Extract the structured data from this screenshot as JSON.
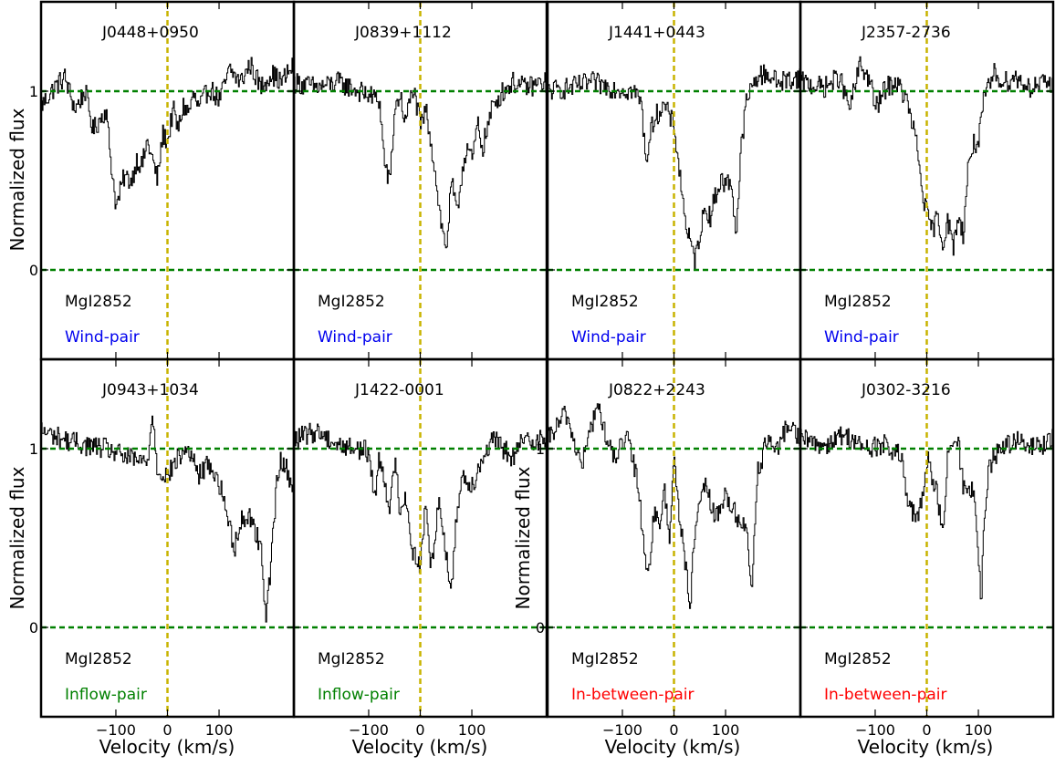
{
  "figure": {
    "ylabel": "Normalized flux",
    "xlabel": "Velocity (km/s)",
    "colors": {
      "spectrum": "#000000",
      "continuum": "#008000",
      "zero_velocity": "#c8b400",
      "wind": "#0000ee",
      "inflow": "#008000",
      "in_between": "#ff0000"
    }
  },
  "chart_data": [
    {
      "type": "line",
      "panel": 1,
      "title": "J0448+0950",
      "line_label": "MgI2852",
      "pair_label": "Wind-pair",
      "pair_color": "#0000ee",
      "xlim": [
        -245,
        245
      ],
      "ylim": [
        -0.5,
        1.5
      ],
      "xticks": [
        -100,
        0,
        100
      ],
      "xtick_labels": [
        "−100",
        "0",
        "100"
      ],
      "yticks": [
        0,
        1
      ],
      "ytick_labels": [
        "0",
        "1"
      ],
      "hlines": [
        0,
        1
      ],
      "vline": 0,
      "x": [
        -245,
        -220,
        -200,
        -180,
        -160,
        -145,
        -120,
        -110,
        -100,
        -85,
        -70,
        -60,
        -50,
        -40,
        -30,
        -20,
        -10,
        0,
        10,
        20,
        30,
        40,
        50,
        60,
        80,
        100,
        120,
        140,
        160,
        180,
        200,
        220,
        245
      ],
      "y": [
        0.92,
        1.02,
        1.08,
        0.9,
        1.0,
        0.78,
        0.9,
        0.6,
        0.35,
        0.52,
        0.5,
        0.62,
        0.58,
        0.72,
        0.62,
        0.5,
        0.76,
        0.72,
        0.9,
        0.78,
        0.92,
        0.88,
        0.98,
        0.9,
        1.02,
        0.95,
        1.12,
        1.05,
        1.15,
        1.02,
        1.1,
        1.05,
        1.15
      ]
    },
    {
      "type": "line",
      "panel": 2,
      "title": "J0839+1112",
      "line_label": "MgI2852",
      "pair_label": "Wind-pair",
      "pair_color": "#0000ee",
      "xlim": [
        -245,
        245
      ],
      "ylim": [
        -0.5,
        1.5
      ],
      "xticks": [
        -100,
        0,
        100
      ],
      "xtick_labels": [
        "−100",
        "0",
        "100"
      ],
      "yticks": [
        0,
        1
      ],
      "ytick_labels": [
        "0",
        "1"
      ],
      "hlines": [
        0,
        1
      ],
      "vline": 0,
      "x": [
        -245,
        -200,
        -160,
        -120,
        -80,
        -70,
        -60,
        -50,
        -40,
        -30,
        -15,
        0,
        10,
        20,
        30,
        40,
        50,
        60,
        70,
        80,
        90,
        100,
        110,
        120,
        140,
        160,
        180,
        200,
        245
      ],
      "y": [
        1.05,
        1.02,
        1.05,
        1.0,
        0.95,
        0.6,
        0.48,
        0.9,
        0.98,
        0.82,
        1.02,
        0.8,
        0.9,
        0.72,
        0.5,
        0.25,
        0.12,
        0.5,
        0.3,
        0.55,
        0.7,
        0.6,
        0.82,
        0.68,
        0.92,
        1.0,
        1.05,
        1.02,
        1.05
      ]
    },
    {
      "type": "line",
      "panel": 3,
      "title": "J1441+0443",
      "line_label": "MgI2852",
      "pair_label": "Wind-pair",
      "pair_color": "#0000ee",
      "xlim": [
        -245,
        245
      ],
      "ylim": [
        -0.5,
        1.5
      ],
      "xticks": [
        -100,
        0,
        100
      ],
      "xtick_labels": [
        "−100",
        "0",
        "100"
      ],
      "yticks": [
        0,
        1
      ],
      "ytick_labels": [
        "0",
        "1"
      ],
      "hlines": [
        0,
        1
      ],
      "vline": 0,
      "x": [
        -245,
        -200,
        -160,
        -120,
        -80,
        -65,
        -55,
        -40,
        -20,
        0,
        10,
        20,
        30,
        40,
        50,
        60,
        70,
        80,
        90,
        100,
        110,
        120,
        130,
        140,
        160,
        180,
        200,
        245
      ],
      "y": [
        1.0,
        1.02,
        1.05,
        1.02,
        1.0,
        0.95,
        0.62,
        0.85,
        0.92,
        0.8,
        0.55,
        0.3,
        0.15,
        0.05,
        0.22,
        0.35,
        0.3,
        0.42,
        0.5,
        0.48,
        0.5,
        0.2,
        0.7,
        0.95,
        1.08,
        1.1,
        1.05,
        1.08
      ]
    },
    {
      "type": "line",
      "panel": 4,
      "title": "J2357-2736",
      "line_label": "MgI2852",
      "pair_label": "Wind-pair",
      "pair_color": "#0000ee",
      "xlim": [
        -245,
        245
      ],
      "ylim": [
        -0.5,
        1.5
      ],
      "xticks": [
        -100,
        0,
        100
      ],
      "xtick_labels": [
        "−100",
        "0",
        "100"
      ],
      "yticks": [
        0,
        1
      ],
      "ytick_labels": [
        "0",
        "1"
      ],
      "hlines": [
        0,
        1
      ],
      "vline": 0,
      "x": [
        -245,
        -200,
        -170,
        -150,
        -130,
        -110,
        -100,
        -80,
        -60,
        -40,
        -20,
        -10,
        0,
        10,
        20,
        30,
        40,
        50,
        60,
        70,
        80,
        90,
        100,
        110,
        130,
        150,
        170,
        200,
        245
      ],
      "y": [
        1.05,
        1.02,
        1.08,
        0.9,
        1.15,
        1.05,
        0.9,
        1.02,
        1.05,
        0.95,
        0.7,
        0.45,
        0.3,
        0.22,
        0.3,
        0.15,
        0.28,
        0.12,
        0.3,
        0.2,
        0.6,
        0.7,
        0.72,
        0.95,
        1.1,
        1.05,
        1.08,
        1.02,
        1.05
      ]
    },
    {
      "type": "line",
      "panel": 5,
      "title": "J0943+1034",
      "line_label": "MgI2852",
      "pair_label": "Inflow-pair",
      "pair_color": "#008000",
      "xlim": [
        -245,
        245
      ],
      "ylim": [
        -0.5,
        1.5
      ],
      "xticks": [
        -100,
        0,
        100
      ],
      "xtick_labels": [
        "−100",
        "0",
        "100"
      ],
      "yticks": [
        0,
        1
      ],
      "ytick_labels": [
        "0",
        "1"
      ],
      "hlines": [
        0,
        1
      ],
      "vline": 0,
      "x": [
        -245,
        -200,
        -160,
        -120,
        -80,
        -40,
        -30,
        -20,
        0,
        20,
        40,
        60,
        80,
        100,
        110,
        120,
        130,
        140,
        160,
        180,
        190,
        200,
        210,
        220,
        245
      ],
      "y": [
        1.1,
        1.05,
        1.02,
        1.0,
        0.95,
        0.92,
        1.2,
        0.88,
        0.85,
        0.95,
        1.0,
        0.85,
        0.92,
        0.8,
        0.7,
        0.55,
        0.45,
        0.6,
        0.62,
        0.45,
        0.08,
        0.35,
        0.78,
        0.95,
        0.78
      ]
    },
    {
      "type": "line",
      "panel": 6,
      "title": "J1422-0001",
      "line_label": "MgI2852",
      "pair_label": "Inflow-pair",
      "pair_color": "#008000",
      "xlim": [
        -245,
        245
      ],
      "ylim": [
        -0.5,
        1.5
      ],
      "xticks": [
        -100,
        0,
        100
      ],
      "xtick_labels": [
        "−100",
        "0",
        "100"
      ],
      "yticks": [
        0,
        1
      ],
      "ytick_labels": [
        "0",
        "1"
      ],
      "hlines": [
        0,
        1
      ],
      "vline": 0,
      "x": [
        -245,
        -200,
        -160,
        -120,
        -100,
        -90,
        -80,
        -70,
        -60,
        -50,
        -40,
        -30,
        -15,
        0,
        10,
        20,
        35,
        50,
        60,
        70,
        80,
        100,
        120,
        140,
        160,
        180,
        200,
        245
      ],
      "y": [
        1.05,
        1.1,
        1.02,
        1.0,
        0.98,
        0.72,
        0.95,
        0.85,
        0.62,
        0.95,
        0.65,
        0.75,
        0.42,
        0.35,
        0.7,
        0.32,
        0.72,
        0.4,
        0.2,
        0.65,
        0.85,
        0.8,
        0.95,
        1.05,
        1.0,
        0.95,
        1.05,
        1.05
      ]
    },
    {
      "type": "line",
      "panel": 7,
      "title": "J0822+2243",
      "line_label": "MgI2852",
      "pair_label": "In-between-pair",
      "pair_color": "#ff0000",
      "xlim": [
        -245,
        245
      ],
      "ylim": [
        -0.5,
        1.5
      ],
      "xticks": [
        -100,
        0,
        100
      ],
      "xtick_labels": [
        "−100",
        "0",
        "100"
      ],
      "yticks": [
        0,
        1
      ],
      "ytick_labels": [
        "0",
        "1"
      ],
      "hlines": [
        0,
        1
      ],
      "vline": 0,
      "x": [
        -245,
        -210,
        -180,
        -150,
        -120,
        -90,
        -70,
        -60,
        -50,
        -40,
        -30,
        -20,
        -10,
        0,
        10,
        20,
        30,
        40,
        60,
        80,
        100,
        120,
        140,
        150,
        160,
        180,
        200,
        220,
        245
      ],
      "y": [
        1.05,
        1.2,
        0.9,
        1.25,
        0.95,
        1.05,
        0.8,
        0.48,
        0.28,
        0.65,
        0.55,
        0.78,
        0.5,
        0.98,
        0.6,
        0.4,
        0.1,
        0.55,
        0.8,
        0.6,
        0.75,
        0.62,
        0.55,
        0.2,
        0.85,
        1.05,
        0.98,
        1.15,
        1.05
      ]
    },
    {
      "type": "line",
      "panel": 8,
      "title": "J0302-3216",
      "line_label": "MgI2852",
      "pair_label": "In-between-pair",
      "pair_color": "#ff0000",
      "xlim": [
        -245,
        245
      ],
      "ylim": [
        -0.5,
        1.5
      ],
      "xticks": [
        -100,
        0,
        100
      ],
      "xtick_labels": [
        "−100",
        "0",
        "100"
      ],
      "yticks": [
        0,
        1
      ],
      "ytick_labels": [
        "0",
        "1"
      ],
      "hlines": [
        0,
        1
      ],
      "vline": 0,
      "x": [
        -245,
        -200,
        -160,
        -120,
        -80,
        -50,
        -40,
        -30,
        -20,
        -10,
        0,
        10,
        20,
        30,
        40,
        50,
        60,
        70,
        80,
        90,
        100,
        105,
        110,
        120,
        140,
        170,
        200,
        245
      ],
      "y": [
        1.05,
        1.02,
        1.08,
        1.0,
        1.02,
        0.95,
        0.72,
        0.65,
        0.6,
        0.7,
        0.95,
        0.85,
        0.75,
        0.5,
        0.95,
        1.02,
        1.05,
        0.78,
        0.8,
        0.75,
        0.35,
        0.15,
        0.55,
        0.9,
        1.0,
        1.05,
        1.0,
        1.05
      ]
    }
  ]
}
